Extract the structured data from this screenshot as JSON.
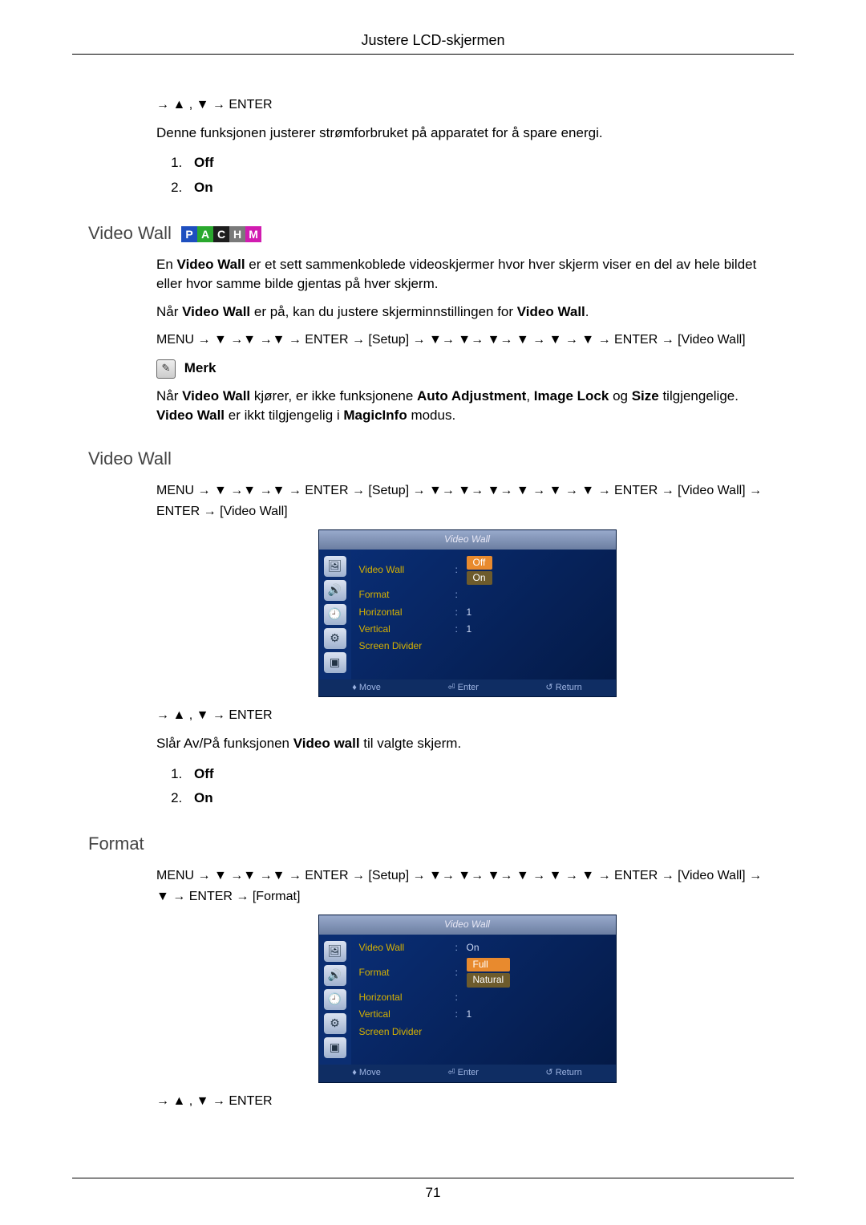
{
  "header": {
    "title": "Justere LCD-skjermen"
  },
  "power": {
    "nav": "→ ▲ , ▼ → ENTER",
    "desc": "Denne funksjonen justerer strømforbruket på apparatet for å spare energi.",
    "opt1": "Off",
    "opt2": "On"
  },
  "videoWallSection": {
    "heading": "Video Wall",
    "badges": {
      "p": {
        "label": "P",
        "color": "#1e4fbf"
      },
      "a": {
        "label": "A",
        "color": "#2aa82e"
      },
      "c": {
        "label": "C",
        "color": "#1e1e1e"
      },
      "h": {
        "label": "H",
        "color": "#7a7a7a"
      },
      "m": {
        "label": "M",
        "color": "#d11cb0"
      }
    },
    "p1a": "En ",
    "p1b": "Video Wall",
    "p1c": " er et sett sammenkoblede videoskjermer hvor hver skjerm viser en del av hele bildet eller hvor samme bilde gjentas på hver skjerm.",
    "p2a": "Når ",
    "p2b": "Video Wall",
    "p2c": " er på, kan du justere skjerminnstillingen for ",
    "p2d": "Video Wall",
    "p2e": ".",
    "navSeq": "MENU → ▼ →▼ →▼ → ENTER → [Setup] → ▼→ ▼→ ▼→ ▼ → ▼ → ▼ → ENTER → [Video Wall]",
    "noteLabel": "Merk",
    "note1a": "Når ",
    "note1b": "Video Wall",
    "note1c": " kjører, er ikke funksjonene ",
    "note1d": "Auto Adjustment",
    "note1e": ", ",
    "note1f": "Image Lock",
    "note1g": " og ",
    "note1h": "Size",
    "note1i": " tilgjengelige. ",
    "note2b": "Video Wall",
    "note2c": " er ikkt tilgjengelig i ",
    "note2d": "MagicInfo",
    "note2e": " modus."
  },
  "videoWallSub": {
    "heading": "Video Wall",
    "navSeq": "MENU → ▼ →▼ →▼ → ENTER → [Setup] → ▼→ ▼→ ▼→ ▼ → ▼ → ▼ → ENTER → [Video Wall] → ENTER → [Video Wall]",
    "belowNav": "→ ▲ , ▼ → ENTER",
    "desc_a": "Slår Av/På funksjonen ",
    "desc_b": "Video wall",
    "desc_c": " til valgte skjerm.",
    "opt1": "Off",
    "opt2": "On"
  },
  "formatSection": {
    "heading": "Format",
    "navSeq": "MENU → ▼ →▼ →▼ → ENTER → [Setup] → ▼→ ▼→ ▼→ ▼ → ▼ → ▼ → ENTER → [Video Wall] → ▼ → ENTER → [Format]",
    "belowNav": "→ ▲ , ▼ → ENTER"
  },
  "osd1": {
    "title": "Video Wall",
    "rows": {
      "r1": {
        "label": "Video Wall",
        "value": "Off",
        "hl": true
      },
      "r1b": {
        "value": "On",
        "hl2": true
      },
      "r2": {
        "label": "Format",
        "value": " "
      },
      "r3": {
        "label": "Horizontal",
        "value": "1"
      },
      "r4": {
        "label": "Vertical",
        "value": "1"
      },
      "r5": {
        "label": "Screen Divider",
        "value": ""
      }
    },
    "footer": {
      "move": "Move",
      "enter": "Enter",
      "ret": "Return"
    }
  },
  "osd2": {
    "title": "Video Wall",
    "rows": {
      "r1": {
        "label": "Video Wall",
        "value": "On"
      },
      "r2": {
        "label": "Format",
        "value": "Full",
        "hl": true
      },
      "r2b": {
        "value": "Natural",
        "hl2": true
      },
      "r3": {
        "label": "Horizontal",
        "value": " "
      },
      "r4": {
        "label": "Vertical",
        "value": "1"
      },
      "r5": {
        "label": "Screen Divider",
        "value": ""
      }
    },
    "footer": {
      "move": "Move",
      "enter": "Enter",
      "ret": "Return"
    }
  },
  "pageNumber": "71",
  "colors": {
    "osdBgStart": "#0a2f78",
    "osdBgEnd": "#041a47",
    "osdTitleStart": "#99aacc",
    "osdTitleEnd": "#6b7ea1",
    "highlight": "#e88a2e",
    "highlight2": "#6d5b2c",
    "menuLabel": "#d7b200",
    "menuValue": "#cdd9f4"
  }
}
